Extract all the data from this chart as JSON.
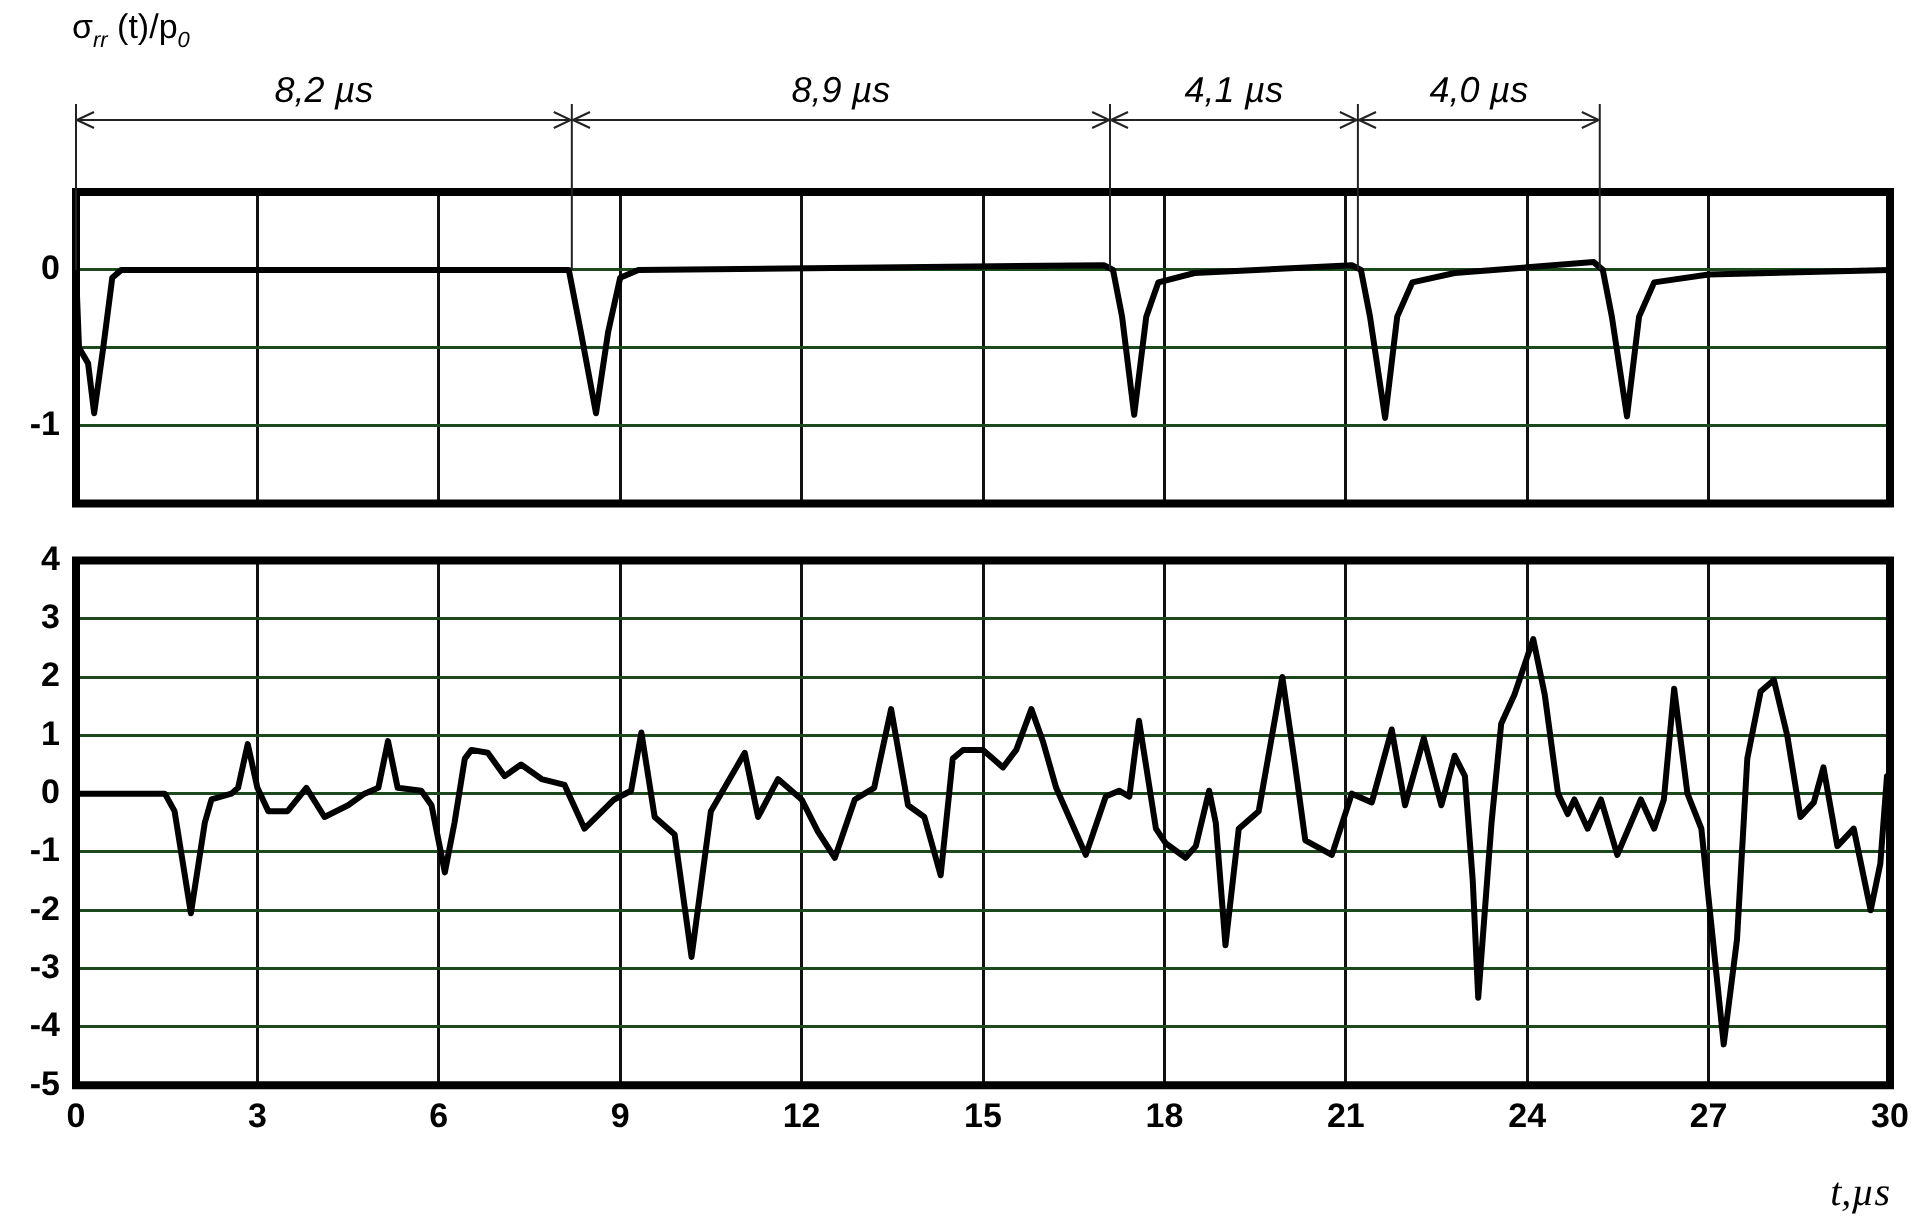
{
  "chart_data": [
    {
      "type": "line",
      "ylabel": "σ$_{rr}$ (t)/p$_{0}$",
      "annotations": [
        "8,2 µs",
        "8,9 µs",
        "4,1 µs",
        "4,0 µs"
      ],
      "ref_lines": [
        {
          "axis": "x",
          "value": 0
        },
        {
          "axis": "x",
          "value": 8.2
        },
        {
          "axis": "x",
          "value": 17.1
        },
        {
          "axis": "x",
          "value": 21.2
        },
        {
          "axis": "x",
          "value": 25.2
        }
      ],
      "x": [
        0,
        0.05,
        0.2,
        0.3,
        0.45,
        0.6,
        0.75,
        8.15,
        8.35,
        8.6,
        8.8,
        9.0,
        9.3,
        17.0,
        17.15,
        17.3,
        17.5,
        17.7,
        17.9,
        18.5,
        21.1,
        21.25,
        21.4,
        21.65,
        21.85,
        22.1,
        22.8,
        25.1,
        25.25,
        25.4,
        25.65,
        25.85,
        26.1,
        27,
        30
      ],
      "series": [
        {
          "color": "#000000",
          "values": [
            0,
            -0.5,
            -0.6,
            -0.92,
            -0.5,
            -0.05,
            0,
            0,
            -0.4,
            -0.92,
            -0.4,
            -0.05,
            0,
            0.03,
            0,
            -0.3,
            -0.93,
            -0.3,
            -0.08,
            -0.02,
            0.03,
            0,
            -0.3,
            -0.95,
            -0.3,
            -0.08,
            -0.02,
            0.05,
            0,
            -0.3,
            -0.94,
            -0.3,
            -0.08,
            -0.03,
            0
          ]
        }
      ],
      "xlim": [
        0,
        30
      ],
      "xticks": [
        0,
        3,
        6,
        9,
        12,
        15,
        18,
        21,
        24,
        27,
        30
      ],
      "ylim": [
        -1.5,
        0.5
      ],
      "yticks": [
        {
          "value": -1.5,
          "label": null
        },
        -1,
        {
          "value": -0.5,
          "label": null
        },
        0,
        {
          "value": 0.5,
          "label": null
        }
      ],
      "grid": true,
      "legend": false,
      "tick_labels": "y",
      "marker": "none"
    },
    {
      "type": "line",
      "xlabel": "t,µs",
      "x": [
        0,
        1.47,
        1.63,
        1.9,
        2.13,
        2.24,
        2.57,
        2.68,
        2.84,
        3.0,
        3.18,
        3.5,
        3.81,
        4.11,
        4.5,
        4.77,
        5.0,
        5.16,
        5.32,
        5.71,
        5.88,
        6.1,
        6.26,
        6.43,
        6.54,
        6.81,
        7.09,
        7.36,
        7.7,
        8.08,
        8.41,
        8.9,
        9.18,
        9.35,
        9.57,
        9.9,
        10.18,
        10.5,
        10.78,
        11.06,
        11.28,
        11.61,
        12.0,
        12.27,
        12.55,
        12.88,
        13.2,
        13.48,
        13.76,
        14.03,
        14.3,
        14.5,
        14.67,
        15.0,
        15.33,
        15.55,
        15.8,
        15.99,
        16.21,
        16.7,
        17.03,
        17.25,
        17.42,
        17.58,
        17.86,
        18.02,
        18.35,
        18.52,
        18.74,
        18.85,
        19.01,
        19.23,
        19.56,
        19.95,
        20.16,
        20.33,
        20.77,
        21.1,
        21.43,
        21.76,
        21.98,
        22.29,
        22.58,
        22.8,
        22.97,
        23.1,
        23.19,
        23.41,
        23.57,
        23.79,
        24.1,
        24.29,
        24.51,
        24.67,
        24.78,
        25.0,
        25.22,
        25.49,
        25.88,
        26.1,
        26.26,
        26.43,
        26.65,
        26.88,
        27.04,
        27.25,
        27.47,
        27.64,
        27.86,
        28.08,
        28.3,
        28.52,
        28.74,
        28.9,
        29.13,
        29.4,
        29.68,
        29.84,
        29.95
      ],
      "series": [
        {
          "color": "#000000",
          "values": [
            0,
            0,
            -0.3,
            -2.05,
            -0.5,
            -0.1,
            0,
            0.1,
            0.85,
            0.1,
            -0.3,
            -0.3,
            0.1,
            -0.4,
            -0.2,
            0,
            0.1,
            0.9,
            0.1,
            0.05,
            -0.2,
            -1.35,
            -0.5,
            0.6,
            0.75,
            0.7,
            0.3,
            0.5,
            0.25,
            0.15,
            -0.6,
            -0.1,
            0.05,
            1.05,
            -0.4,
            -0.7,
            -2.8,
            -0.3,
            0.2,
            0.7,
            -0.4,
            0.25,
            -0.1,
            -0.65,
            -1.1,
            -0.1,
            0.1,
            1.45,
            -0.2,
            -0.4,
            -1.4,
            0.6,
            0.75,
            0.75,
            0.45,
            0.75,
            1.45,
            0.9,
            0.1,
            -1.05,
            -0.05,
            0.05,
            -0.05,
            1.25,
            -0.6,
            -0.85,
            -1.1,
            -0.9,
            0.05,
            -0.5,
            -2.6,
            -0.6,
            -0.3,
            2.0,
            0.5,
            -0.8,
            -1.05,
            0,
            -0.15,
            1.1,
            -0.2,
            0.95,
            -0.2,
            0.65,
            0.3,
            -1.5,
            -3.5,
            -0.5,
            1.2,
            1.7,
            2.65,
            1.7,
            0,
            -0.35,
            -0.1,
            -0.6,
            -0.1,
            -1.05,
            -0.1,
            -0.6,
            -0.1,
            1.8,
            0,
            -0.6,
            -2.2,
            -4.3,
            -2.5,
            0.6,
            1.75,
            1.95,
            1.0,
            -0.4,
            -0.15,
            0.45,
            -0.9,
            -0.6,
            -2.0,
            -1.2,
            0.3
          ]
        }
      ],
      "xlim": [
        0,
        30
      ],
      "xticks": [
        0,
        3,
        6,
        9,
        12,
        15,
        18,
        21,
        24,
        27,
        30
      ],
      "ylim": [
        -5,
        4
      ],
      "yticks": [
        -5,
        -4,
        -3,
        -2,
        -1,
        0,
        1,
        2,
        3,
        4
      ],
      "grid": true,
      "legend": false,
      "marker": "none"
    }
  ]
}
